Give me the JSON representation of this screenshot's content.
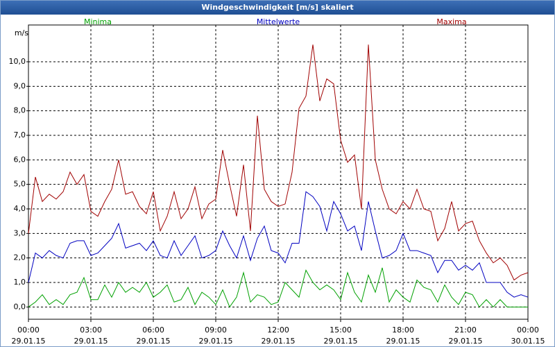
{
  "window_title": "Windgeschwindigkeit [m/s] skaliert",
  "chart_data": {
    "type": "line",
    "ylabel": "m/s",
    "x": [
      0,
      20,
      40,
      60,
      80,
      100,
      120,
      140,
      160,
      180,
      200,
      220,
      240,
      260,
      280,
      300,
      320,
      340,
      360,
      380,
      400,
      420,
      440,
      460,
      480,
      500,
      520,
      540,
      560,
      580,
      600,
      620,
      640,
      660,
      680,
      700,
      720,
      740,
      760,
      780,
      800,
      820,
      840,
      860,
      880,
      900,
      920,
      940,
      960,
      980,
      1000,
      1020,
      1040,
      1060,
      1080,
      1100,
      1120,
      1140,
      1160,
      1180,
      1200,
      1220,
      1240,
      1260,
      1280,
      1300,
      1320,
      1340,
      1360,
      1380,
      1400,
      1420,
      1440
    ],
    "xlim": [
      0,
      1440
    ],
    "xticks": [
      {
        "value": 0,
        "label": "00:00"
      },
      {
        "value": 180,
        "label": "03:00"
      },
      {
        "value": 360,
        "label": "06:00"
      },
      {
        "value": 540,
        "label": "09:00"
      },
      {
        "value": 720,
        "label": "12:00"
      },
      {
        "value": 900,
        "label": "15:00"
      },
      {
        "value": 1080,
        "label": "18:00"
      },
      {
        "value": 1260,
        "label": "21:00"
      },
      {
        "value": 1440,
        "label": "00:00"
      }
    ],
    "xtick_dates": [
      "29.01.15",
      "29.01.15",
      "29.01.15",
      "29.01.15",
      "29.01.15",
      "29.01.15",
      "29.01.15",
      "29.01.15",
      "30.01.15"
    ],
    "ylim": [
      -0.5,
      11.5
    ],
    "yticks": [
      {
        "value": 0,
        "label": "0,0"
      },
      {
        "value": 1,
        "label": "1,0"
      },
      {
        "value": 2,
        "label": "2,0"
      },
      {
        "value": 3,
        "label": "3,0"
      },
      {
        "value": 4,
        "label": "4,0"
      },
      {
        "value": 5,
        "label": "5,0"
      },
      {
        "value": 6,
        "label": "6,0"
      },
      {
        "value": 7,
        "label": "7,0"
      },
      {
        "value": 8,
        "label": "8,0"
      },
      {
        "value": 9,
        "label": "9,0"
      },
      {
        "value": 10,
        "label": "10,0"
      }
    ],
    "grid": true,
    "legend": "top",
    "series": [
      {
        "name": "Minima",
        "color": "#00a000",
        "values": [
          0.0,
          0.2,
          0.5,
          0.1,
          0.3,
          0.1,
          0.5,
          0.6,
          1.2,
          0.3,
          0.3,
          0.9,
          0.4,
          1.0,
          0.6,
          0.8,
          0.6,
          1.0,
          0.4,
          0.6,
          0.9,
          0.2,
          0.3,
          0.8,
          0.1,
          0.6,
          0.4,
          0.1,
          0.7,
          0.0,
          0.4,
          1.4,
          0.2,
          0.5,
          0.4,
          0.1,
          0.2,
          1.0,
          0.7,
          0.4,
          1.5,
          1.0,
          0.7,
          0.9,
          0.7,
          0.3,
          1.4,
          0.6,
          0.2,
          1.3,
          0.6,
          1.6,
          0.2,
          0.7,
          0.4,
          0.2,
          1.1,
          0.8,
          0.7,
          0.2,
          0.9,
          0.4,
          0.1,
          0.6,
          0.5,
          0.0,
          0.3,
          0.0,
          0.3,
          0.0,
          0.0,
          0.0,
          0.0
        ]
      },
      {
        "name": "Mittelwerte",
        "color": "#0000c0",
        "values": [
          1.0,
          2.2,
          2.0,
          2.3,
          2.1,
          2.0,
          2.6,
          2.7,
          2.7,
          2.1,
          2.2,
          2.5,
          2.8,
          3.4,
          2.4,
          2.5,
          2.6,
          2.3,
          2.7,
          2.1,
          2.0,
          2.7,
          2.1,
          2.5,
          2.9,
          2.0,
          2.1,
          2.3,
          3.1,
          2.5,
          2.0,
          2.9,
          1.9,
          2.8,
          3.3,
          2.3,
          2.2,
          1.8,
          2.6,
          2.6,
          4.7,
          4.5,
          4.1,
          3.1,
          4.3,
          3.8,
          3.1,
          3.3,
          2.3,
          4.3,
          3.1,
          2.0,
          2.1,
          2.3,
          3.0,
          2.3,
          2.3,
          2.2,
          2.1,
          1.4,
          1.9,
          1.9,
          1.5,
          1.7,
          1.5,
          1.8,
          1.0,
          1.0,
          1.0,
          0.6,
          0.4,
          0.5,
          0.4
        ]
      },
      {
        "name": "Maxima",
        "color": "#a00000",
        "values": [
          3.0,
          5.3,
          4.3,
          4.6,
          4.4,
          4.7,
          5.5,
          5.0,
          5.4,
          3.9,
          3.7,
          4.3,
          4.8,
          6.0,
          4.6,
          4.7,
          4.1,
          3.8,
          4.7,
          3.1,
          3.7,
          4.7,
          3.6,
          4.0,
          4.9,
          3.6,
          4.2,
          4.4,
          6.4,
          5.0,
          3.7,
          5.8,
          3.1,
          7.8,
          4.8,
          4.3,
          4.1,
          4.2,
          5.5,
          8.1,
          8.6,
          10.7,
          8.4,
          9.3,
          9.1,
          6.8,
          5.9,
          6.2,
          4.0,
          10.7,
          6.0,
          4.8,
          4.0,
          3.8,
          4.3,
          4.0,
          4.8,
          4.0,
          3.9,
          2.7,
          3.2,
          4.3,
          3.1,
          3.4,
          3.5,
          2.7,
          2.2,
          1.8,
          2.0,
          1.7,
          1.1,
          1.3,
          1.4
        ]
      }
    ]
  }
}
